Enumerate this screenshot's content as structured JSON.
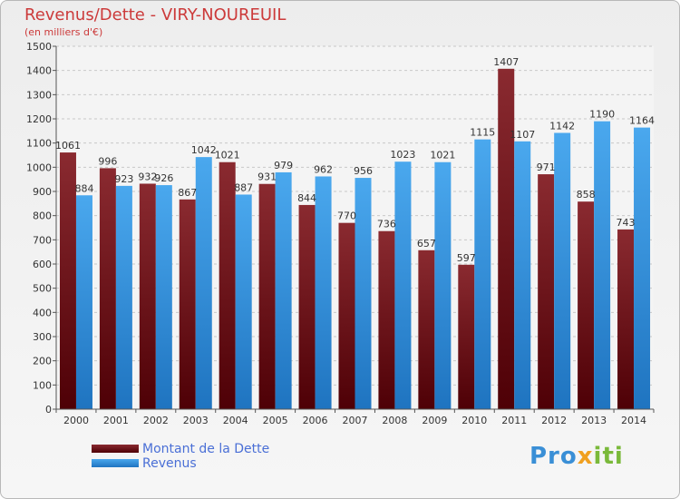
{
  "chart_data": {
    "type": "bar",
    "title": "Revenus/Dette - VIRY-NOUREUIL",
    "subtitle": "(en milliers d'€)",
    "categories": [
      "2000",
      "2001",
      "2002",
      "2003",
      "2004",
      "2005",
      "2006",
      "2007",
      "2008",
      "2009",
      "2010",
      "2011",
      "2012",
      "2013",
      "2014"
    ],
    "series": [
      {
        "name": "Montant de la Dette",
        "color": "#6b0f14",
        "values": [
          1061,
          996,
          932,
          867,
          1021,
          931,
          844,
          770,
          736,
          657,
          597,
          1407,
          971,
          858,
          743
        ],
        "labels": [
          "1061",
          "996",
          "932",
          "867",
          "1021",
          "931",
          "844",
          "770",
          "736",
          "657",
          "597",
          "1407",
          "971",
          "858",
          "743"
        ]
      },
      {
        "name": "Revenus",
        "color": "#2a8ad8",
        "values": [
          884,
          923,
          926,
          1042,
          887,
          979,
          962,
          956,
          1023,
          1021,
          1115,
          1107,
          1142,
          1190,
          1164
        ],
        "labels": [
          "884",
          "923",
          "926",
          "1042",
          "887",
          "979",
          "962",
          "956",
          "1023",
          "1021",
          "1115",
          "1107",
          "1142",
          "1190",
          "1164"
        ]
      }
    ],
    "ylim": [
      0,
      1500
    ],
    "yticks": [
      0,
      100,
      200,
      300,
      400,
      500,
      600,
      700,
      800,
      900,
      1000,
      1100,
      1200,
      1300,
      1400,
      1500
    ],
    "grid": true,
    "legend_position": "bottom-left"
  },
  "branding": {
    "logo_prefix": "Pro",
    "logo_x": "x",
    "logo_suffix": "iti"
  }
}
